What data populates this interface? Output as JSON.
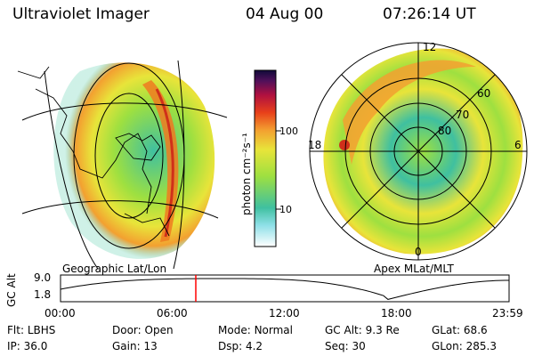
{
  "header": {
    "instrument": "Ultraviolet Imager",
    "date": "04 Aug 00",
    "time": "07:26:14 UT"
  },
  "colorbar": {
    "unit_label": "photon cm⁻²s⁻¹",
    "ticks": [
      "100",
      "10"
    ]
  },
  "left_panel": {
    "label": "Geographic Lat/Lon"
  },
  "right_panel": {
    "label": "Apex MLat/MLT",
    "mlt_labels": [
      "12",
      "18",
      "6",
      "0"
    ],
    "mlat_labels": [
      "60",
      "70",
      "80"
    ]
  },
  "altitude_plot": {
    "ylabel": "GC Alt",
    "y_ticks": [
      "9.0",
      "1.8"
    ],
    "x_ticks": [
      "00:00",
      "06:00",
      "12:00",
      "18:00",
      "23:59"
    ],
    "marker_color": "#ff0000",
    "curve_color": "#000000"
  },
  "status": {
    "row1": [
      {
        "key": "Flt:",
        "value": "LBHS"
      },
      {
        "key": "Door:",
        "value": "Open"
      },
      {
        "key": "Mode:",
        "value": "Normal"
      },
      {
        "key": "GC Alt:",
        "value": "9.3 Re"
      },
      {
        "key": "GLat:",
        "value": "68.6"
      }
    ],
    "row2": [
      {
        "key": "IP:",
        "value": "36.0"
      },
      {
        "key": "Gain:",
        "value": "13"
      },
      {
        "key": "Dsp:",
        "value": "4.2"
      },
      {
        "key": "Seq:",
        "value": "30"
      },
      {
        "key": "GLon:",
        "value": "285.3"
      }
    ]
  },
  "colors": {
    "low": "#5fd0b0",
    "mid": "#e6e43a",
    "high": "#f07a20",
    "peak": "#d0301a"
  }
}
